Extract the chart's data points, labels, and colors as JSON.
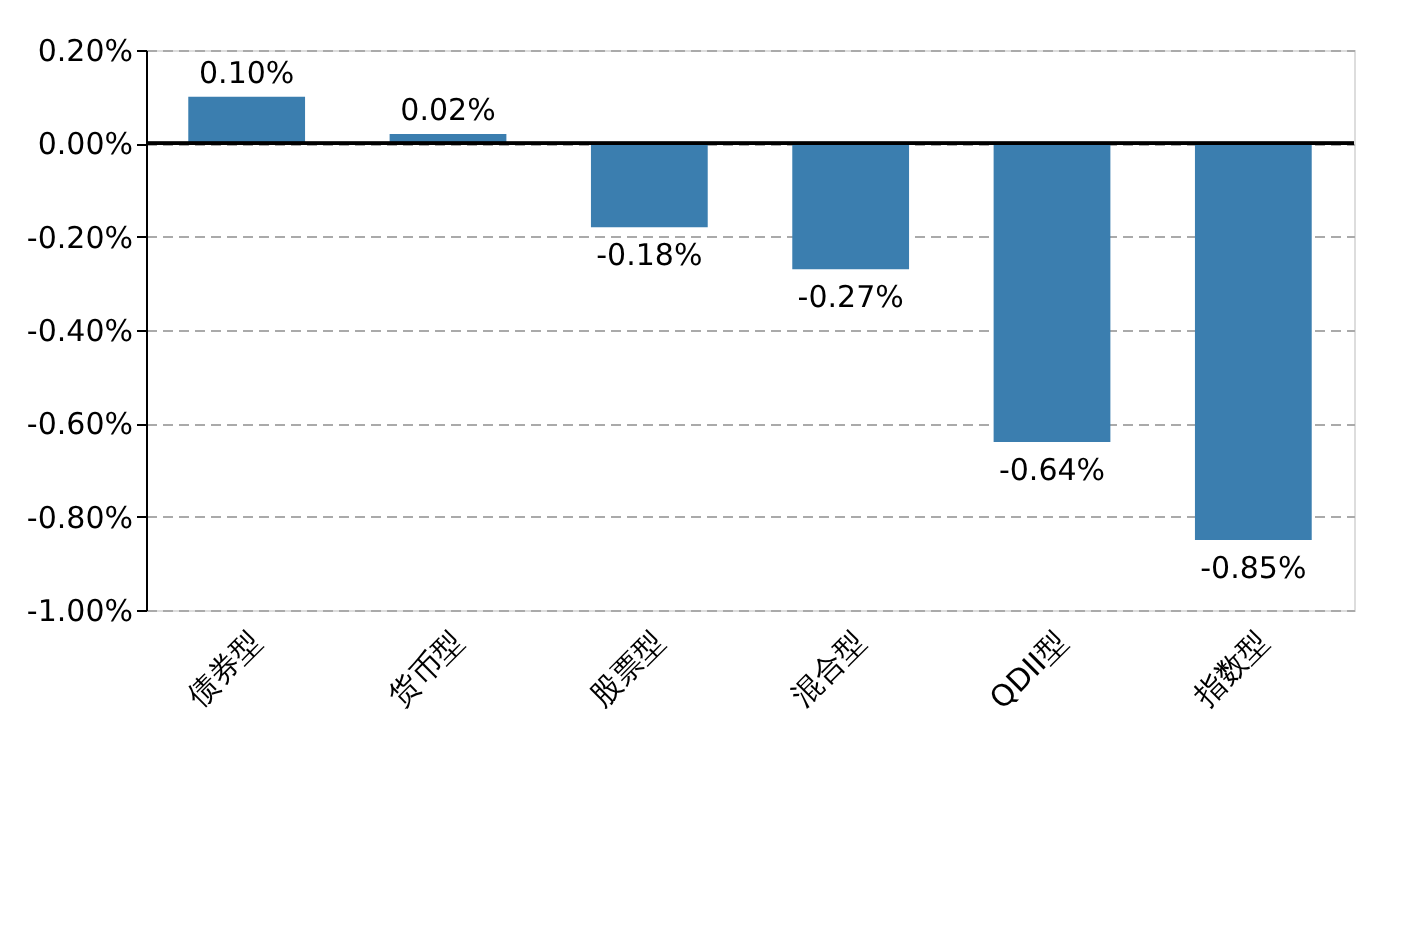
{
  "chart_data": {
    "type": "bar",
    "categories": [
      "债券型",
      "货币型",
      "股票型",
      "混合型",
      "QDII型",
      "指数型"
    ],
    "values": [
      0.1,
      0.02,
      -0.18,
      -0.27,
      -0.64,
      -0.85
    ],
    "value_labels": [
      "0.10%",
      "0.02%",
      "-0.18%",
      "-0.27%",
      "-0.64%",
      "-0.85%"
    ],
    "color": "#3b7eaf",
    "ylim": [
      -1.0,
      0.2
    ],
    "yticks": [
      {
        "value": 0.2,
        "label": "0.20%"
      },
      {
        "value": 0.0,
        "label": "0.00%"
      },
      {
        "value": -0.2,
        "label": "-0.20%"
      },
      {
        "value": -0.4,
        "label": "-0.40%"
      },
      {
        "value": -0.6,
        "label": "-0.60%"
      },
      {
        "value": -0.8,
        "label": "-0.80%"
      },
      {
        "value": -1.0,
        "label": "-1.00%"
      }
    ],
    "grid": "y"
  }
}
